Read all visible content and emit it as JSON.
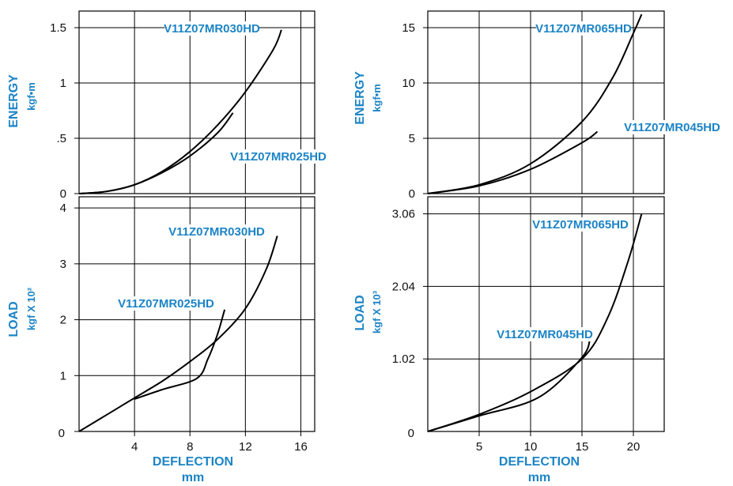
{
  "chart_data": [
    {
      "type": "line",
      "ylabel": "ENERGY",
      "yunit": "kgf•m",
      "xlim": [
        0,
        17
      ],
      "ylim": [
        0,
        1.65
      ],
      "xticks": [
        4,
        8,
        12,
        16
      ],
      "yticks": [
        0,
        0.5,
        1,
        1.5
      ],
      "ytick_labels": [
        "0",
        ".5",
        "1",
        "1.5"
      ],
      "series": [
        {
          "name": "V11Z07MR030HD",
          "x": [
            0,
            2,
            4,
            6,
            8,
            10,
            12,
            14,
            14.6
          ],
          "y": [
            0,
            0.02,
            0.08,
            0.2,
            0.38,
            0.62,
            0.92,
            1.3,
            1.48
          ]
        },
        {
          "name": "V11Z07MR025HD",
          "x": [
            0,
            2,
            4,
            6,
            8,
            10,
            11.1
          ],
          "y": [
            0,
            0.02,
            0.08,
            0.19,
            0.34,
            0.55,
            0.73
          ]
        }
      ]
    },
    {
      "type": "line",
      "ylabel": "ENERGY",
      "yunit": "kgf•m",
      "xlim": [
        0,
        23
      ],
      "ylim": [
        0,
        16.5
      ],
      "xticks": [
        5,
        10,
        15,
        20
      ],
      "yticks": [
        0,
        5,
        10,
        15
      ],
      "ytick_labels": [
        "0",
        "5",
        "10",
        "15"
      ],
      "series": [
        {
          "name": "V11Z07MR065HD",
          "x": [
            0,
            5,
            10,
            15,
            18,
            20,
            20.8
          ],
          "y": [
            0,
            0.8,
            2.7,
            6.5,
            10.5,
            14.5,
            16.2
          ]
        },
        {
          "name": "V11Z07MR045HD",
          "x": [
            0,
            5,
            10,
            15,
            16.5
          ],
          "y": [
            0,
            0.7,
            2.2,
            4.6,
            5.6
          ]
        }
      ]
    },
    {
      "type": "line",
      "ylabel": "LOAD",
      "yunit": "kgf X 10²",
      "xlabel": "DEFLECTION",
      "xunit": "mm",
      "xlim": [
        0,
        17
      ],
      "ylim": [
        0,
        4.2
      ],
      "xticks": [
        4,
        8,
        12,
        16
      ],
      "xtick_labels": [
        "4",
        "8",
        "12",
        "16"
      ],
      "yticks": [
        0,
        1,
        2,
        3,
        4
      ],
      "ytick_labels": [
        "0",
        "1",
        "2",
        "3",
        "4"
      ],
      "series": [
        {
          "name": "V11Z07MR030HD",
          "x": [
            0,
            2,
            4,
            6,
            8,
            10,
            12,
            13.5,
            14.3
          ],
          "y": [
            0,
            0.3,
            0.6,
            0.9,
            1.25,
            1.65,
            2.2,
            2.9,
            3.5
          ]
        },
        {
          "name": "V11Z07MR025HD",
          "x": [
            4,
            6,
            8.5,
            9.3,
            10,
            10.5
          ],
          "y": [
            0.58,
            0.75,
            0.95,
            1.3,
            1.75,
            2.18
          ]
        }
      ]
    },
    {
      "type": "line",
      "ylabel": "LOAD",
      "yunit": "kgf X 10³",
      "xlabel": "DEFLECTION",
      "xunit": "mm",
      "xlim": [
        0,
        23
      ],
      "ylim": [
        0,
        3.3
      ],
      "xticks": [
        5,
        10,
        15,
        20
      ],
      "xtick_labels": [
        "5",
        "10",
        "15",
        "20"
      ],
      "yticks": [
        1.02,
        2.04,
        3.06
      ],
      "ytick_labels": [
        "1.02",
        "2.04",
        "3.06"
      ],
      "series": [
        {
          "name": "V11Z07MR065HD",
          "x": [
            0,
            5,
            10,
            15,
            17.5,
            19.5,
            20.8
          ],
          "y": [
            0,
            0.24,
            0.56,
            1.02,
            1.6,
            2.4,
            3.06
          ]
        },
        {
          "name": "V11Z07MR045HD",
          "x": [
            0,
            5,
            10.8,
            15,
            15.8
          ],
          "y": [
            0,
            0.22,
            0.48,
            1.04,
            1.32
          ]
        }
      ]
    }
  ],
  "bottom_zero_labels": [
    "0",
    "0"
  ]
}
